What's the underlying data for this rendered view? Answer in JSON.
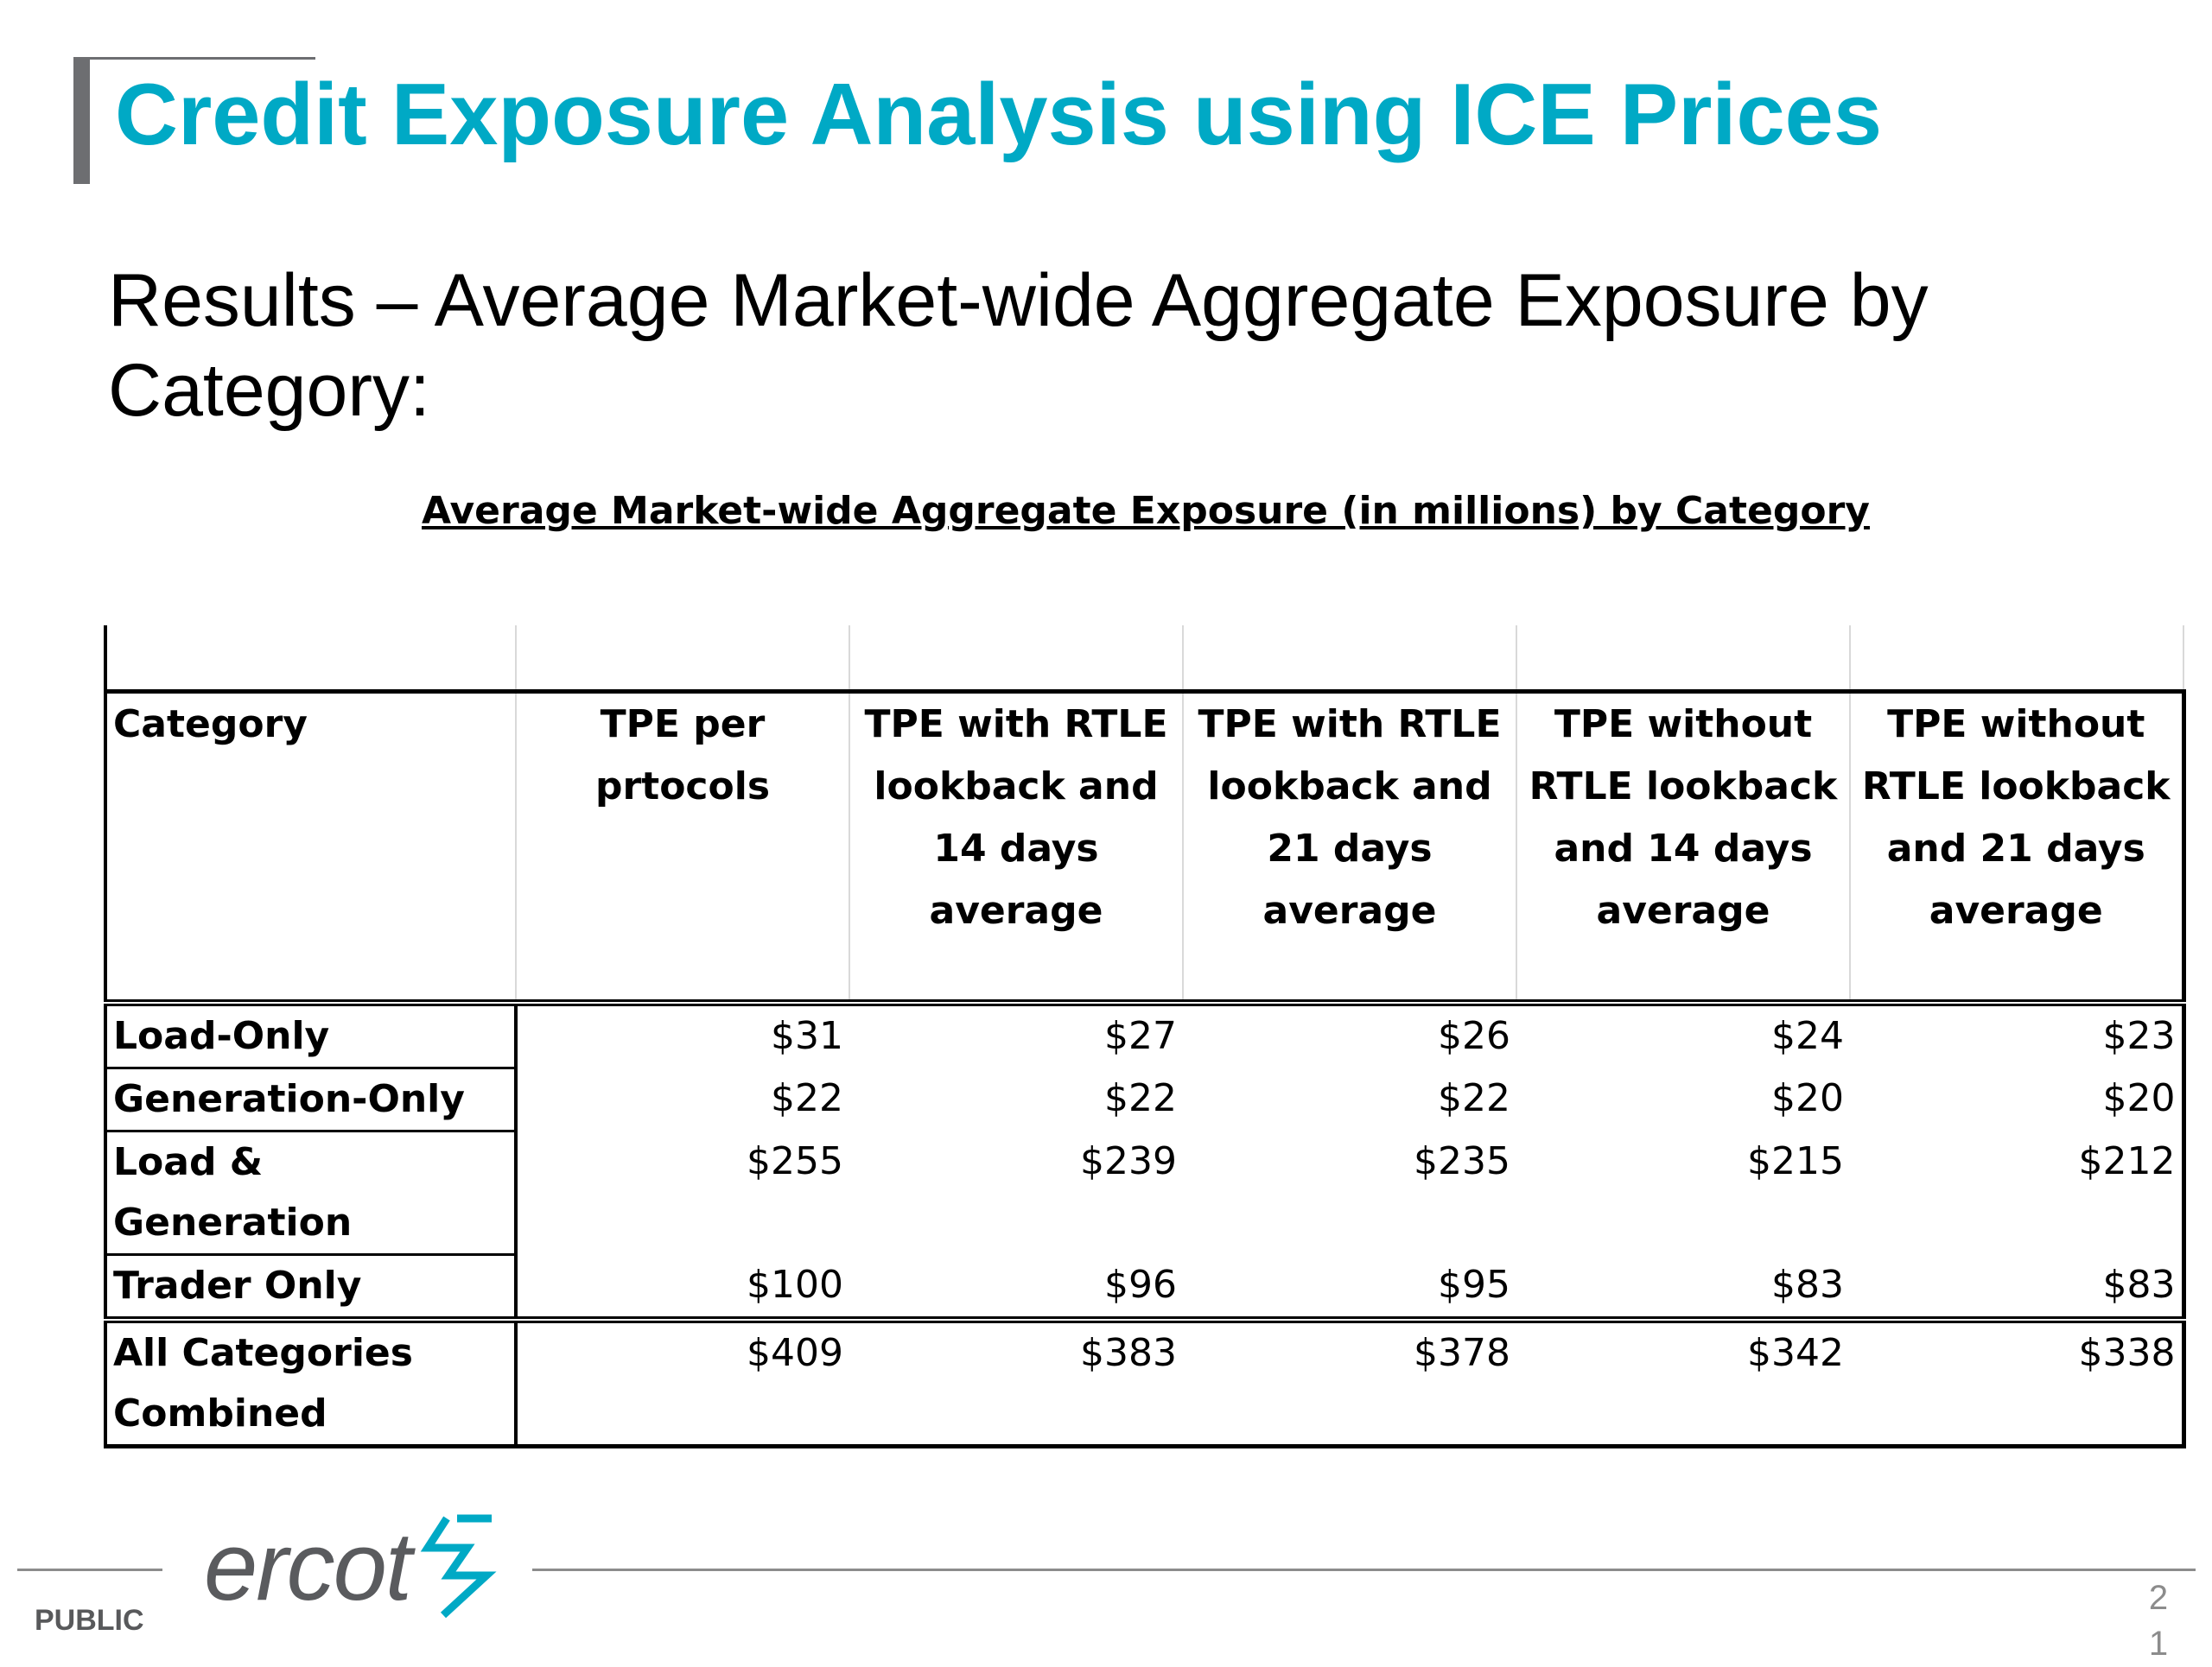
{
  "title": "Credit Exposure Analysis using ICE Prices",
  "subtitle": "Results – Average Market-wide Aggregate Exposure by Category:",
  "table": {
    "caption": "Average Market-wide Aggregate Exposure (in millions) by Category",
    "headers": [
      "Category",
      "TPE per prtocols",
      "TPE with RTLE lookback and 14 days average",
      "TPE with RTLE lookback and 21 days average",
      "TPE without RTLE lookback and 14 days average",
      "TPE without RTLE lookback and 21 days average"
    ],
    "rows": [
      {
        "category": "Load-Only",
        "values": [
          "$31",
          "$27",
          "$26",
          "$24",
          "$23"
        ]
      },
      {
        "category": "Generation-Only",
        "values": [
          "$22",
          "$22",
          "$22",
          "$20",
          "$20"
        ]
      },
      {
        "category": "Load & Generation",
        "values": [
          "$255",
          "$239",
          "$235",
          "$215",
          "$212"
        ]
      },
      {
        "category": "Trader Only",
        "values": [
          "$100",
          "$96",
          "$95",
          "$83",
          "$83"
        ]
      }
    ],
    "total": {
      "category": "All Categories Combined",
      "values": [
        "$409",
        "$383",
        "$378",
        "$342",
        "$338"
      ]
    }
  },
  "footer": {
    "logo_text": "ercot",
    "logo_icon": "lightning-bolt-icon",
    "classification": "PUBLIC",
    "page_number_line1": "2",
    "page_number_line2": "1"
  },
  "colors": {
    "title": "#00a9c5",
    "accent_bar": "#6d6e71",
    "logo": "#5a5b5e",
    "logo_bolt": "#00a9c5"
  }
}
